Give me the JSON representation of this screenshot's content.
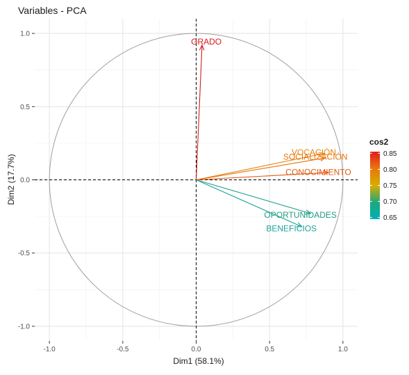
{
  "chart_data": {
    "type": "scatter",
    "title": "Variables - PCA",
    "xlabel": "Dim1 (58.1%)",
    "ylabel": "Dim2 (17.7%)",
    "xlim": [
      -1.1,
      1.1
    ],
    "ylim": [
      -1.1,
      1.1
    ],
    "x_ticks": [
      -1.0,
      -0.5,
      0.0,
      0.5,
      1.0
    ],
    "y_ticks": [
      -1.0,
      -0.5,
      0.0,
      0.5,
      1.0
    ],
    "x_tick_labels": [
      "-1.0",
      "-0.5",
      "0.0",
      "0.5",
      "1.0"
    ],
    "y_tick_labels": [
      "-1.0",
      "-0.5",
      "0.0",
      "0.5",
      "1.0"
    ],
    "grid": true,
    "correlation_circle": true,
    "variables": [
      {
        "name": "GRADO",
        "x": 0.04,
        "y": 0.92,
        "cos2": 0.85,
        "color": "#d7191c"
      },
      {
        "name": "VOCACIÓN",
        "x": 0.87,
        "y": 0.18,
        "cos2": 0.78,
        "color": "#e8820c"
      },
      {
        "name": "SOCIALIZACIÓN",
        "x": 0.88,
        "y": 0.15,
        "cos2": 0.79,
        "color": "#e8740c"
      },
      {
        "name": "CONOCIMIENTO",
        "x": 0.9,
        "y": 0.05,
        "cos2": 0.81,
        "color": "#e3590e"
      },
      {
        "name": "OPORTUNIDADES",
        "x": 0.78,
        "y": -0.23,
        "cos2": 0.67,
        "color": "#1f9d86"
      },
      {
        "name": "BENEFICIOS",
        "x": 0.72,
        "y": -0.32,
        "cos2": 0.65,
        "color": "#1aa39a"
      }
    ],
    "legend": {
      "title": "cos2",
      "position": "right",
      "ticks": [
        "0.85",
        "0.80",
        "0.75",
        "0.70",
        "0.65"
      ],
      "tick_values": [
        0.85,
        0.8,
        0.75,
        0.7,
        0.65
      ],
      "range": [
        0.645,
        0.855
      ],
      "gradient_colors": [
        "#e41a1c",
        "#e8770c",
        "#d9ad00",
        "#1fa87a",
        "#00afbb"
      ]
    }
  }
}
